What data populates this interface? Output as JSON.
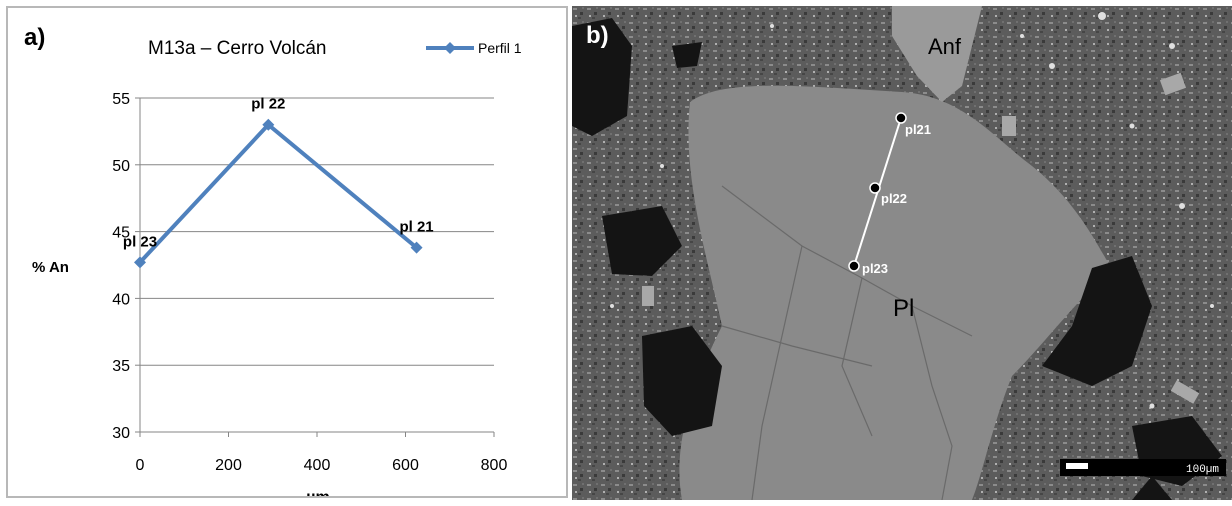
{
  "panel_a": {
    "letter": "a)",
    "chart_data": {
      "type": "line",
      "title": "M13a – Cerro Volcán",
      "xlabel": "µm",
      "ylabel": "% An",
      "xlim": [
        0,
        800
      ],
      "ylim": [
        30,
        55
      ],
      "x_ticks": [
        "0",
        "200",
        "400",
        "600",
        "800"
      ],
      "y_ticks": [
        "30",
        "35",
        "40",
        "45",
        "50",
        "55"
      ],
      "grid": "horizontal",
      "legend_position": "top-right",
      "series": [
        {
          "name": "Perfil 1",
          "color": "#4f81bd",
          "marker": "diamond",
          "points": [
            {
              "x": 0,
              "y": 42.7,
              "label": "pl 23"
            },
            {
              "x": 290,
              "y": 53.0,
              "label": "pl 22"
            },
            {
              "x": 625,
              "y": 43.8,
              "label": "pl 21"
            }
          ]
        }
      ]
    }
  },
  "panel_b": {
    "letter": "b)",
    "labels": {
      "mineral_top": "Anf",
      "mineral_center": "Pl"
    },
    "profile_points": [
      "pl21",
      "pl22",
      "pl23"
    ],
    "scale_bar": "100µm"
  }
}
